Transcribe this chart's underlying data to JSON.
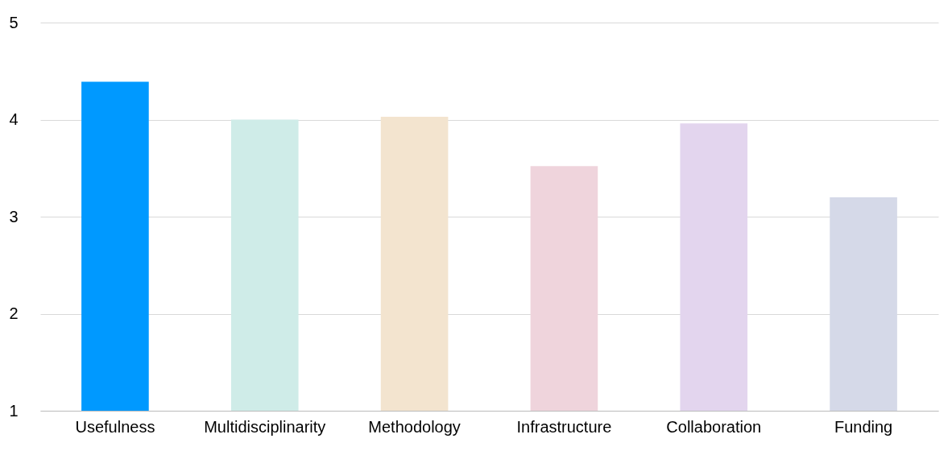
{
  "chart_data": {
    "type": "bar",
    "categories": [
      "Usefulness",
      "Multidisciplinarity",
      "Methodology",
      "Infrastructure",
      "Collaboration",
      "Funding"
    ],
    "values": [
      4.39,
      4.0,
      4.03,
      3.52,
      3.96,
      3.2
    ],
    "colors": [
      "#0099ff",
      "#cfece8",
      "#f3e4cf",
      "#efd4dc",
      "#e3d5ee",
      "#d5d9e8"
    ],
    "ylim": [
      1,
      5
    ],
    "yticks": [
      1,
      2,
      3,
      4,
      5
    ],
    "grid": "y"
  }
}
